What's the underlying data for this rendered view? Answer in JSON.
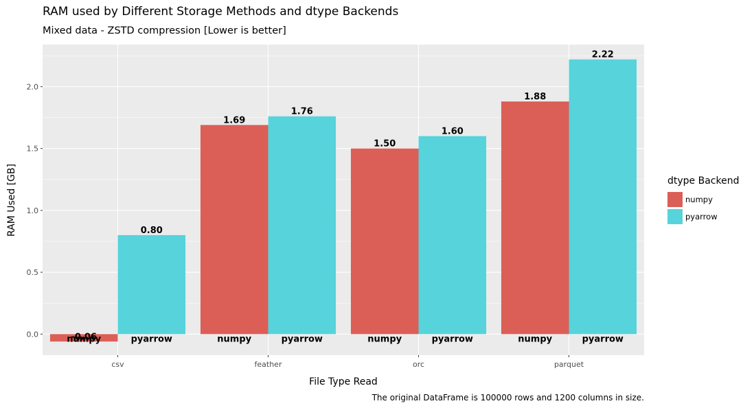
{
  "chart_data": {
    "type": "bar",
    "title": "RAM used by Different Storage Methods and dtype Backends",
    "subtitle": "Mixed data - ZSTD compression [Lower is better]",
    "caption": "The original DataFrame is 100000 rows and 1200 columns in size.",
    "xlabel": "File Type Read",
    "ylabel": "RAM Used [GB]",
    "categories": [
      "csv",
      "feather",
      "orc",
      "parquet"
    ],
    "series": [
      {
        "name": "numpy",
        "color": "#DB5F57",
        "values": [
          -0.06,
          1.69,
          1.5,
          1.88
        ],
        "labels": [
          "-0.06",
          "1.69",
          "1.50",
          "1.88"
        ]
      },
      {
        "name": "pyarrow",
        "color": "#57D3DB",
        "values": [
          0.8,
          1.76,
          1.6,
          2.22
        ],
        "labels": [
          "0.80",
          "1.76",
          "1.60",
          "2.22"
        ]
      }
    ],
    "yticks": [
      "0.0",
      "0.5",
      "1.0",
      "1.5",
      "2.0"
    ],
    "ylim": [
      -0.17,
      2.34
    ],
    "grid": true,
    "legend": {
      "title": "dtype Backend",
      "placement": "right"
    }
  }
}
